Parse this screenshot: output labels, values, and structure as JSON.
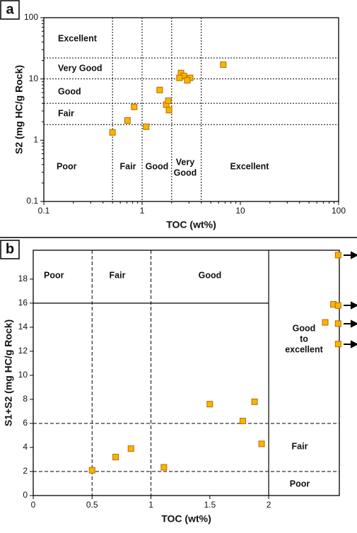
{
  "chart_data": [
    {
      "type": "scatter",
      "panel": "a",
      "x_label": "TOC (wt%)",
      "y_label": "S2 (mg HC/g Rock)",
      "log_x": true,
      "log_y": true,
      "xlim": [
        0.1,
        100
      ],
      "ylim": [
        0.1,
        100
      ],
      "xticks": [
        0.1,
        1,
        10,
        100
      ],
      "yticks": [
        0.1,
        1,
        10,
        100
      ],
      "color": "#f7b500",
      "edge_color": "#b86a00",
      "x": [
        0.5,
        0.71,
        0.83,
        1.1,
        1.51,
        1.76,
        1.85,
        1.88,
        2.49,
        2.66,
        2.4,
        3.08,
        2.88,
        6.7
      ],
      "values": [
        1.34,
        2.1,
        3.5,
        1.66,
        6.6,
        3.8,
        4.4,
        3.1,
        12.5,
        11.2,
        10.4,
        10.4,
        9.5,
        17.1
      ],
      "zone_lines_x": [
        0.5,
        1,
        2,
        4
      ],
      "zone_lines_y": [
        22,
        10,
        4,
        1.8
      ],
      "annotations": [
        "Excellent",
        "Very Good",
        "Good",
        "Fair",
        "Poor",
        "Fair",
        "Good",
        "Very",
        "Good",
        "Excellent"
      ]
    },
    {
      "type": "scatter",
      "panel": "b",
      "x_label": "TOC (wt%)",
      "y_label": "S1+S2 (mg HC/g Rock)",
      "log_x": false,
      "log_y": false,
      "xlim": [
        0,
        2.6
      ],
      "ylim": [
        0,
        20.4
      ],
      "xticks": [
        0,
        0.5,
        1,
        1.5,
        2
      ],
      "yticks": [
        0,
        2,
        4,
        6,
        8,
        10,
        12,
        14,
        16,
        18
      ],
      "color": "#f7b500",
      "edge_color": "#b86a00",
      "x": [
        0.5,
        0.7,
        0.83,
        1.11,
        1.5,
        1.78,
        1.88,
        1.94,
        2.59,
        2.55,
        2.59,
        2.48,
        2.59,
        2.59
      ],
      "values": [
        2.1,
        3.2,
        3.9,
        2.35,
        7.6,
        6.2,
        7.8,
        4.3,
        20.0,
        15.9,
        15.8,
        14.4,
        14.3,
        12.6
      ],
      "zone_lines_x": [
        0.5,
        1,
        2
      ],
      "zone_lines_y": [
        16,
        6,
        2
      ],
      "annotations": [
        "Poor",
        "Fair",
        "Good",
        "Good",
        "to",
        "excellent",
        "Fair",
        "Poor"
      ]
    }
  ]
}
